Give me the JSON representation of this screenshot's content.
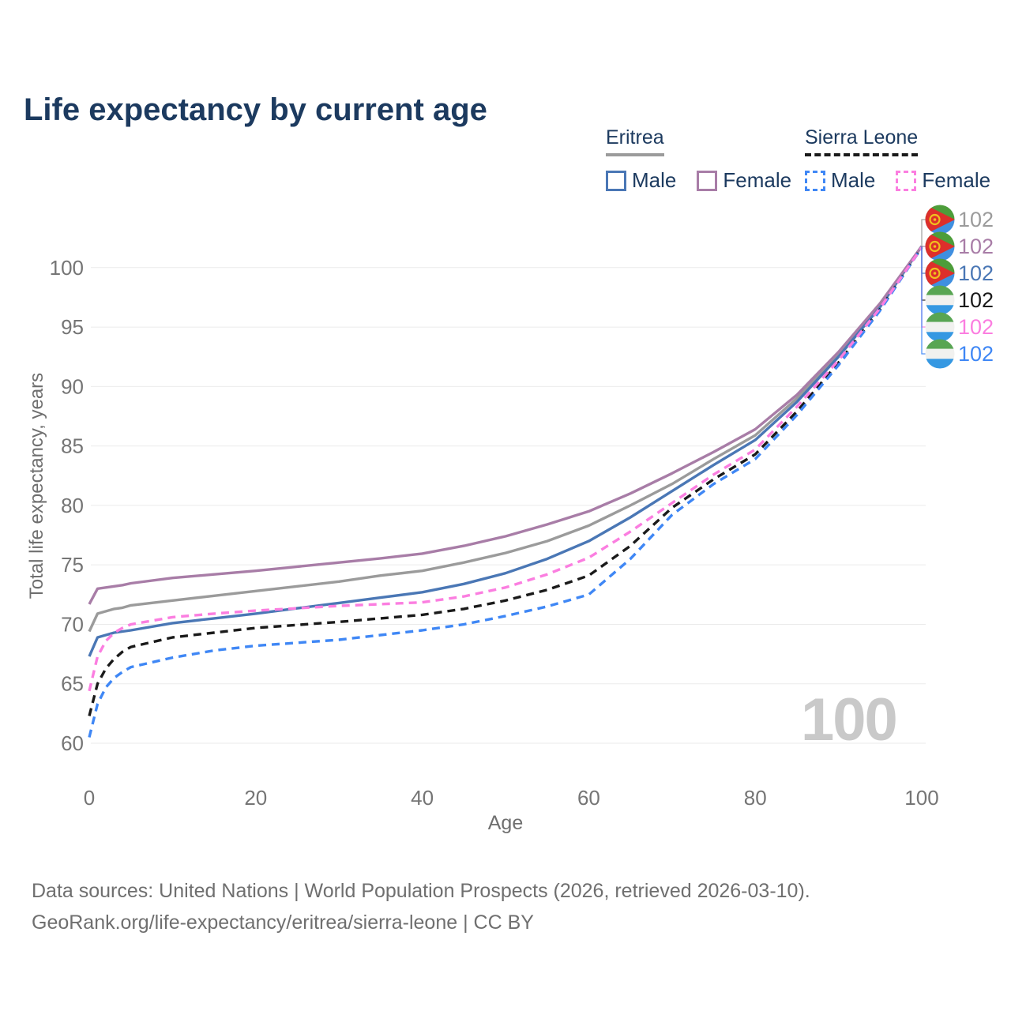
{
  "title": "Life expectancy by current age",
  "watermark": "100",
  "legend": {
    "groups": [
      {
        "name": "Eritrea",
        "line_style": "solid",
        "line_color": "#9b9b9b",
        "items": [
          {
            "label": "Male",
            "color": "#4a77b5",
            "dashed": false
          },
          {
            "label": "Female",
            "color": "#a87da7",
            "dashed": false
          }
        ]
      },
      {
        "name": "Sierra Leone",
        "line_style": "dashed",
        "line_color": "#1a1a1a",
        "items": [
          {
            "label": "Male",
            "color": "#3f87f5",
            "dashed": true
          },
          {
            "label": "Female",
            "color": "#fb7ee0",
            "dashed": true
          }
        ]
      }
    ]
  },
  "footer": {
    "line1": "Data sources: United Nations | World Population Prospects (2026, retrieved 2026-03-10).",
    "line2": "GeoRank.org/life-expectancy/eritrea/sierra-leone | CC BY"
  },
  "right_labels": [
    {
      "series": "Eritrea Total",
      "flag": "eritrea",
      "value": "102",
      "color": "#9b9b9b"
    },
    {
      "series": "Eritrea Female",
      "flag": "eritrea",
      "value": "102",
      "color": "#a87da7"
    },
    {
      "series": "Eritrea Male",
      "flag": "eritrea",
      "value": "102",
      "color": "#4a77b5"
    },
    {
      "series": "Sierra Leone Total",
      "flag": "sierra-leone",
      "value": "102",
      "color": "#1a1a1a"
    },
    {
      "series": "Sierra Leone Female",
      "flag": "sierra-leone",
      "value": "102",
      "color": "#fb7ee0"
    },
    {
      "series": "Sierra Leone Male",
      "flag": "sierra-leone",
      "value": "102",
      "color": "#3f87f5"
    }
  ],
  "flag_colors": {
    "eritrea": {
      "green": "#4d9d3a",
      "red": "#dd2f2b",
      "blue": "#3f8fe0",
      "yellow": "#f0c01e"
    },
    "sierra_leone": {
      "green": "#58a553",
      "white": "#f1f1ef",
      "blue": "#3598e2"
    }
  },
  "chart_data": {
    "type": "line",
    "title": "Life expectancy by current age",
    "xlabel": "Age",
    "ylabel": "Total life expectancy, years",
    "xlim": [
      0,
      100
    ],
    "ylim": [
      60,
      102
    ],
    "xticks": [
      0,
      20,
      40,
      60,
      80,
      100
    ],
    "yticks": [
      60,
      65,
      70,
      75,
      80,
      85,
      90,
      95,
      100
    ],
    "grid": "horizontal",
    "legend_position": "top-right",
    "x": [
      0,
      1,
      2,
      3,
      4,
      5,
      10,
      15,
      20,
      25,
      30,
      35,
      40,
      45,
      50,
      55,
      60,
      65,
      70,
      75,
      80,
      85,
      90,
      95,
      100
    ],
    "series": [
      {
        "name": "Eritrea Total",
        "country": "Eritrea",
        "sex": "Total",
        "color": "#9b9b9b",
        "dashed": false,
        "end_label": "102",
        "values": [
          69.4,
          70.9,
          71.1,
          71.3,
          71.4,
          71.6,
          72.0,
          72.4,
          72.8,
          73.2,
          73.6,
          74.1,
          74.5,
          75.2,
          76.0,
          77.0,
          78.3,
          80.0,
          81.8,
          83.9,
          85.9,
          89.0,
          92.7,
          96.8,
          101.8
        ]
      },
      {
        "name": "Eritrea Male",
        "country": "Eritrea",
        "sex": "Male",
        "color": "#4a77b5",
        "dashed": false,
        "end_label": "102",
        "values": [
          67.3,
          68.9,
          69.1,
          69.3,
          69.4,
          69.5,
          70.1,
          70.5,
          70.9,
          71.35,
          71.8,
          72.25,
          72.7,
          73.4,
          74.3,
          75.5,
          77.0,
          79.0,
          81.2,
          83.4,
          85.5,
          88.7,
          92.5,
          96.7,
          101.8
        ]
      },
      {
        "name": "Eritrea Female",
        "country": "Eritrea",
        "sex": "Female",
        "color": "#a87da7",
        "dashed": false,
        "end_label": "102",
        "values": [
          71.7,
          73.0,
          73.1,
          73.2,
          73.3,
          73.45,
          73.9,
          74.2,
          74.5,
          74.85,
          75.2,
          75.55,
          75.95,
          76.6,
          77.4,
          78.4,
          79.5,
          81.0,
          82.7,
          84.5,
          86.4,
          89.3,
          92.9,
          97.0,
          101.8
        ]
      },
      {
        "name": "Sierra Leone Total",
        "country": "Sierra Leone",
        "sex": "Total",
        "color": "#1a1a1a",
        "dashed": true,
        "end_label": "102",
        "values": [
          62.3,
          65.0,
          66.3,
          67.1,
          67.7,
          68.1,
          68.9,
          69.3,
          69.7,
          69.95,
          70.2,
          70.5,
          70.8,
          71.3,
          72.0,
          72.9,
          74.1,
          76.6,
          79.8,
          82.2,
          84.3,
          87.9,
          92.0,
          96.5,
          101.7
        ]
      },
      {
        "name": "Sierra Leone Male",
        "country": "Sierra Leone",
        "sex": "Male",
        "color": "#3f87f5",
        "dashed": true,
        "end_label": "102",
        "values": [
          60.5,
          63.3,
          64.7,
          65.5,
          66.0,
          66.4,
          67.2,
          67.8,
          68.2,
          68.45,
          68.7,
          69.1,
          69.5,
          70.0,
          70.7,
          71.5,
          72.5,
          75.5,
          79.2,
          81.8,
          83.9,
          87.6,
          91.8,
          96.4,
          101.7
        ]
      },
      {
        "name": "Sierra Leone Female",
        "country": "Sierra Leone",
        "sex": "Female",
        "color": "#fb7ee0",
        "dashed": true,
        "end_label": "102",
        "values": [
          64.4,
          67.3,
          68.6,
          69.3,
          69.7,
          70.0,
          70.6,
          70.9,
          71.15,
          71.35,
          71.55,
          71.7,
          71.85,
          72.35,
          73.1,
          74.2,
          75.6,
          77.8,
          80.2,
          82.6,
          84.7,
          88.3,
          92.2,
          96.6,
          101.7
        ]
      }
    ]
  }
}
